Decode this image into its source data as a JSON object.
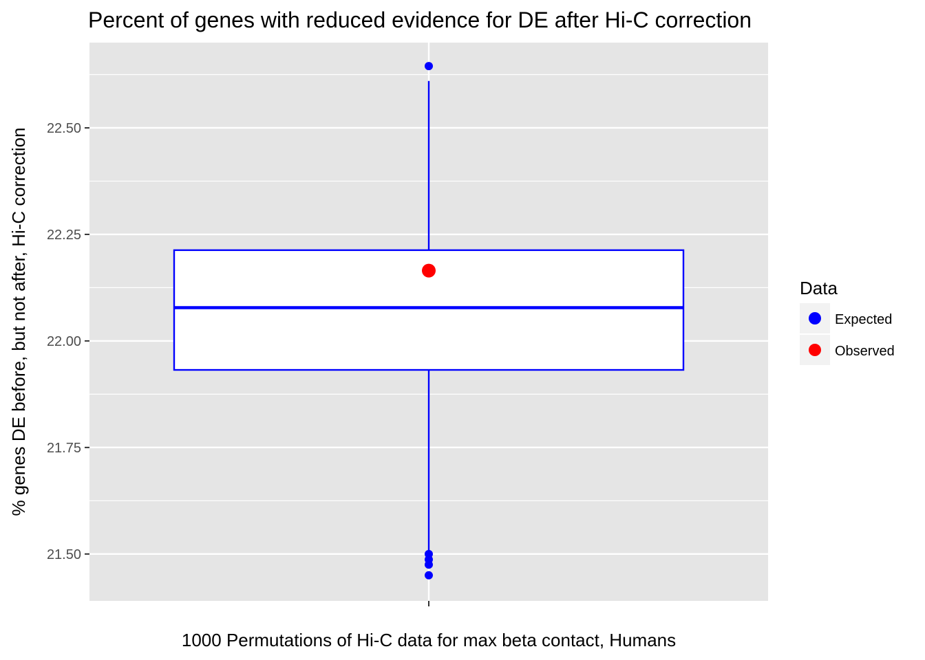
{
  "chart_data": {
    "type": "boxplot",
    "title": "Percent of genes with reduced evidence for DE after Hi-C correction",
    "xlabel": "1000 Permutations of Hi-C data for max beta contact, Humans",
    "ylabel": "% genes DE before, but not after, Hi-C correction",
    "ylim": [
      21.39,
      22.7
    ],
    "y_ticks": [
      21.5,
      21.75,
      22.0,
      22.25,
      22.5
    ],
    "y_tick_labels": [
      "21.50",
      "21.75",
      "22.00",
      "22.25",
      "22.50"
    ],
    "grid": true,
    "legend": {
      "title": "Data",
      "position": "right",
      "entries": [
        {
          "label": "Expected",
          "color": "#0000ff"
        },
        {
          "label": "Observed",
          "color": "#ff0000"
        }
      ]
    },
    "box": {
      "series": "Expected",
      "q1": 21.932,
      "median": 22.078,
      "q3": 22.213,
      "whisker_low": 21.505,
      "whisker_high": 22.61,
      "outliers": [
        22.645,
        21.5,
        21.487,
        21.475,
        21.45
      ]
    },
    "observed": {
      "series": "Observed",
      "value": 22.165
    }
  },
  "colors": {
    "panel": "#e5e5e5",
    "grid": "#ffffff",
    "expected": "#0000ff",
    "observed": "#ff0000"
  }
}
